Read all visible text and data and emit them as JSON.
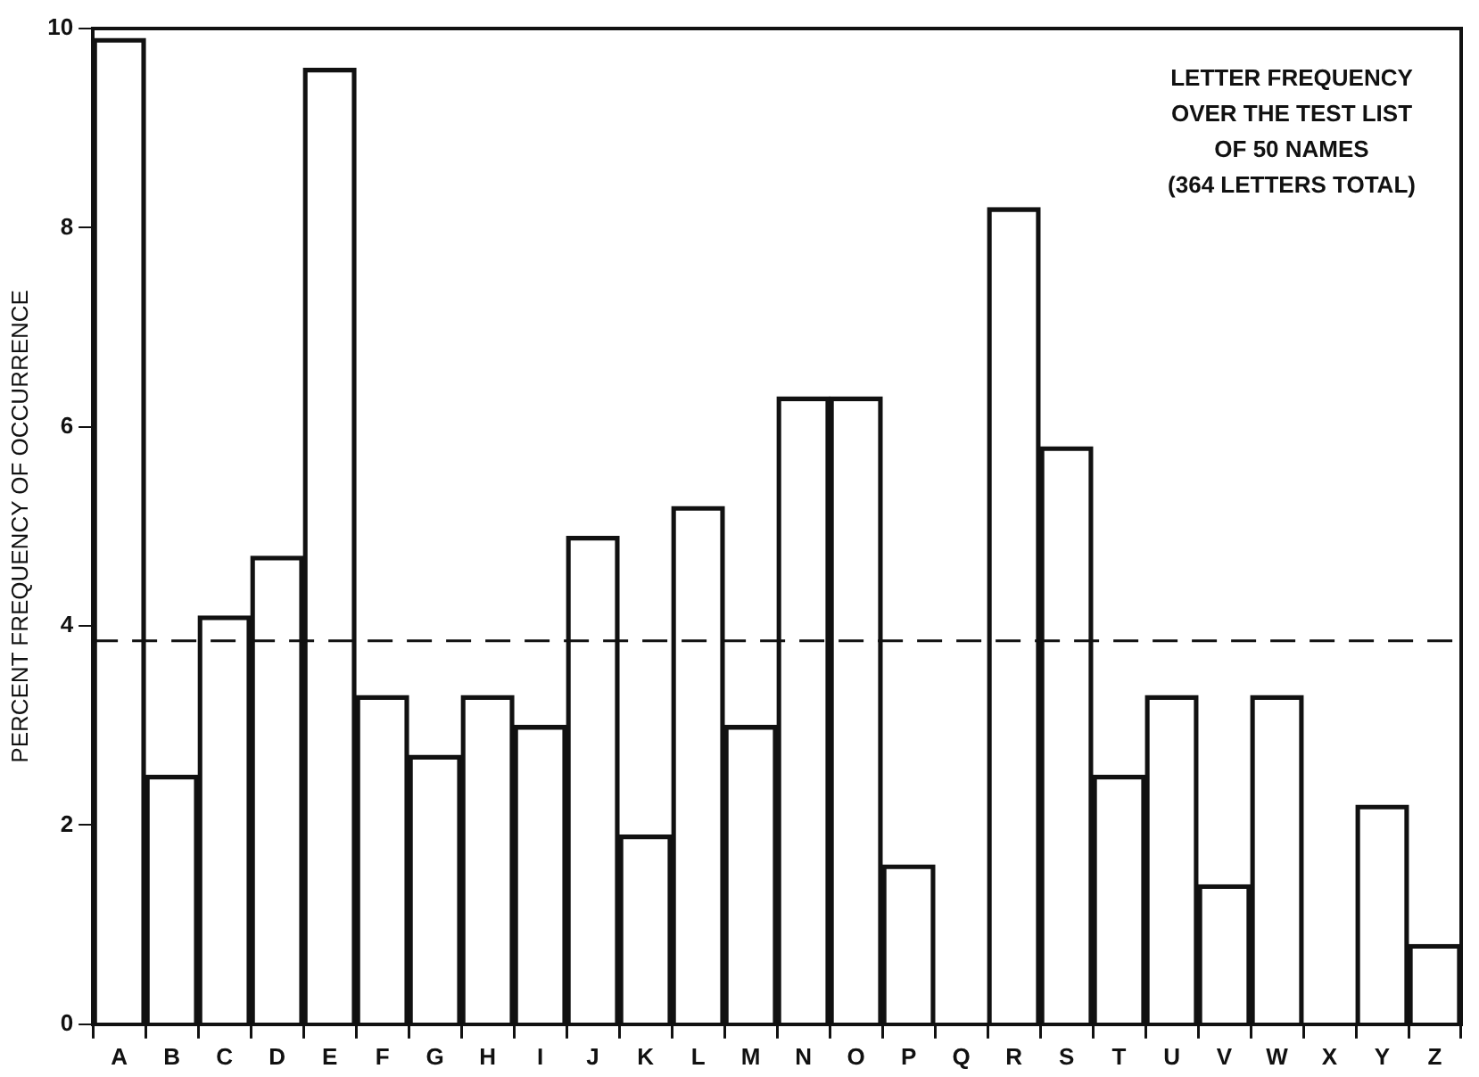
{
  "chart_data": {
    "type": "bar",
    "ylabel": "PERCENT FREQUENCY OF OCCURRENCE",
    "categories": [
      "A",
      "B",
      "C",
      "D",
      "E",
      "F",
      "G",
      "H",
      "I",
      "J",
      "K",
      "L",
      "M",
      "N",
      "O",
      "P",
      "Q",
      "R",
      "S",
      "T",
      "U",
      "V",
      "W",
      "X",
      "Y",
      "Z"
    ],
    "values": [
      9.9,
      2.5,
      4.1,
      4.7,
      9.6,
      3.3,
      2.7,
      3.3,
      3.0,
      4.9,
      1.9,
      5.2,
      3.0,
      6.3,
      6.3,
      1.6,
      0,
      8.2,
      5.8,
      2.5,
      3.3,
      1.4,
      3.3,
      0,
      2.2,
      0.8
    ],
    "color": "#111111",
    "ylim": [
      0,
      10
    ],
    "yticks": [
      0,
      2,
      4,
      6,
      8,
      10
    ],
    "grid": false,
    "legend": false,
    "ref_lines": [
      {
        "axis": "y",
        "value": 3.85,
        "color": "#111111",
        "line_style": "dashed"
      }
    ],
    "annotations": [
      "LETTER FREQUENCY\nOVER THE TEST LIST\nOF 50 NAMES\n(364 LETTERS TOTAL)"
    ]
  }
}
